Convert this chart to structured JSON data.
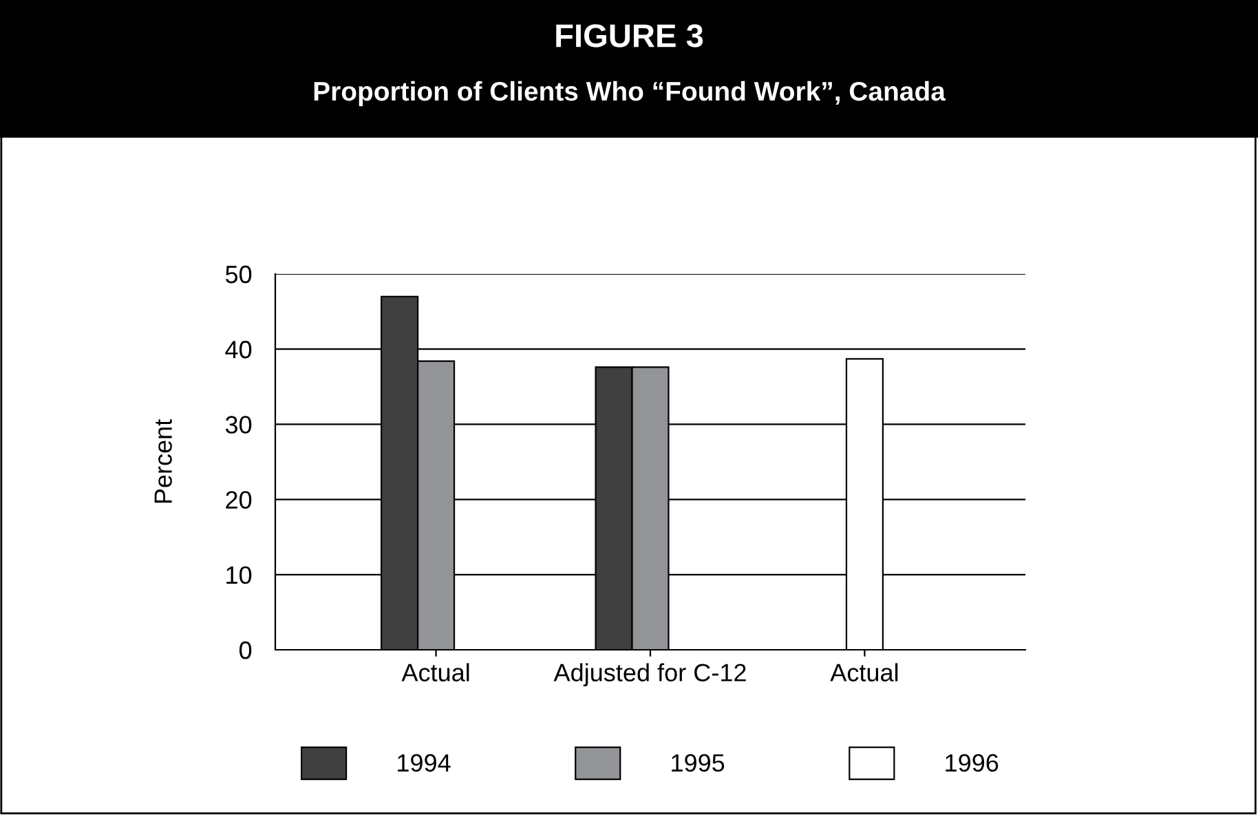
{
  "chart_data": {
    "type": "bar",
    "title": "FIGURE 3",
    "subtitle": "Proportion of Clients Who “Found Work”, Canada",
    "ylabel": "Percent",
    "categories": [
      "Actual",
      "Adjusted for C-12",
      "Actual"
    ],
    "series": [
      {
        "name": "1994",
        "color": "#404040",
        "values": [
          47,
          37.6,
          null
        ]
      },
      {
        "name": "1995",
        "color": "#939498",
        "values": [
          38.4,
          37.6,
          null
        ]
      },
      {
        "name": "1996",
        "color": "#ffffff",
        "values": [
          null,
          null,
          38.7
        ]
      }
    ],
    "ylim": [
      0,
      50
    ],
    "yticks": [
      0,
      10,
      20,
      30,
      40,
      50
    ],
    "grid": "y",
    "legend": "bottom"
  }
}
